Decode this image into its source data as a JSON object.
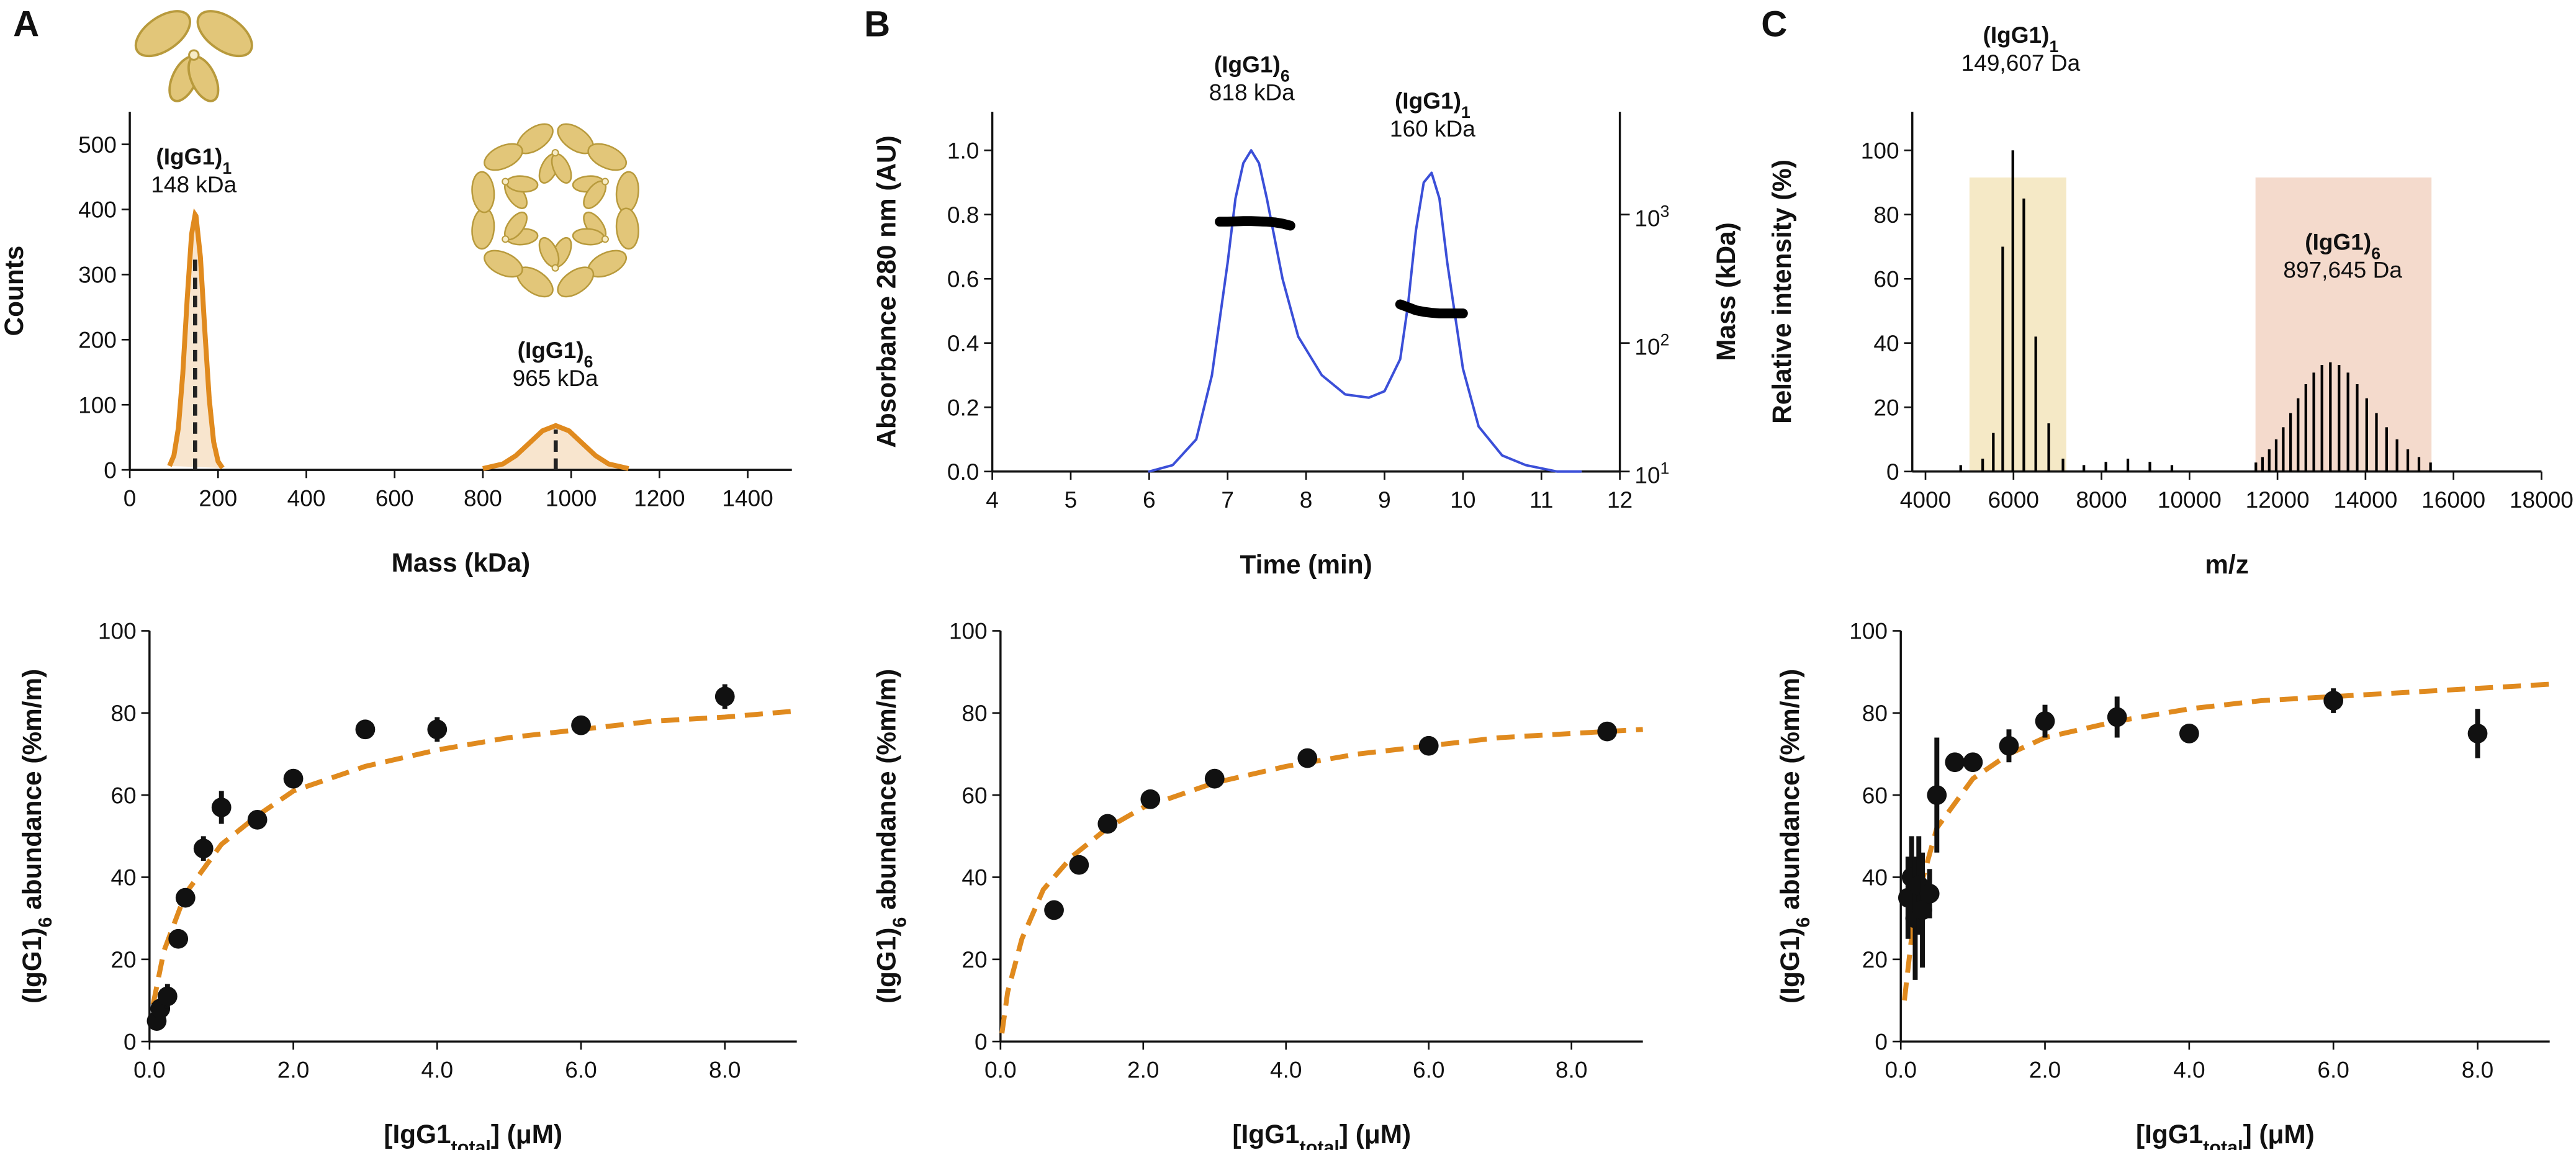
{
  "chart_data": [
    {
      "type": "distribution",
      "panel": "A",
      "xlabel": "Mass (kDa)",
      "ylabel": "Counts",
      "xlim": [
        0,
        1500
      ],
      "xticks": [
        0,
        200,
        400,
        600,
        800,
        1000,
        1200,
        1400
      ],
      "ylim": [
        0,
        550
      ],
      "yticks": [
        0,
        100,
        200,
        300,
        400,
        500
      ],
      "series": [
        {
          "color": "#e08a1e",
          "x": [
            90,
            100,
            110,
            120,
            130,
            140,
            148,
            150,
            160,
            170,
            180,
            190,
            200,
            210
          ],
          "values": [
            6,
            22,
            64,
            147,
            262,
            362,
            392,
            390,
            327,
            214,
            109,
            43,
            13,
            3
          ]
        },
        {
          "color": "#e08a1e",
          "x": [
            800,
            845,
            875,
            905,
            935,
            965,
            995,
            1025,
            1055,
            1085,
            1130
          ],
          "values": [
            2,
            9,
            22,
            41,
            60,
            68,
            60,
            41,
            22,
            9,
            2
          ]
        }
      ],
      "peak_markers": [
        {
          "x": 148,
          "y": 330
        },
        {
          "x": 965,
          "y": 62
        }
      ],
      "annotations": [
        {
          "text": "(IgG1)",
          "sub": "1",
          "detail": "148 kDa"
        },
        {
          "text": "(IgG1)",
          "sub": "6",
          "detail": "965 kDa"
        }
      ]
    },
    {
      "type": "line",
      "panel": "B",
      "xlabel": "Time (min)",
      "ylabel": "Absorbance 280 nm (AU)",
      "y2label": "Mass (kDa)",
      "xlim": [
        4,
        12
      ],
      "xticks": [
        4,
        5,
        6,
        7,
        8,
        9,
        10,
        11,
        12
      ],
      "ylim": [
        0,
        1.12
      ],
      "yticks": [
        {
          "value": 0,
          "label": "0.0"
        },
        0.2,
        0.4,
        0.6,
        0.8,
        {
          "value": 1,
          "label": "1.0"
        }
      ],
      "y2lim": [
        10,
        6310
      ],
      "y2log": true,
      "y2ticks": [
        {
          "value": 10,
          "label": "10",
          "sup": "1"
        },
        {
          "value": 100,
          "label": "10",
          "sup": "2"
        },
        {
          "value": 1000,
          "label": "10",
          "sup": "3"
        }
      ],
      "series": [
        {
          "color": "#3b4fd8",
          "x": [
            6.0,
            6.3,
            6.6,
            6.8,
            7.0,
            7.1,
            7.2,
            7.3,
            7.4,
            7.5,
            7.7,
            7.9,
            8.2,
            8.5,
            8.8,
            9.0,
            9.2,
            9.3,
            9.4,
            9.5,
            9.6,
            9.7,
            9.8,
            10.0,
            10.2,
            10.5,
            10.8,
            11.2,
            11.5
          ],
          "values": [
            0,
            0.02,
            0.1,
            0.3,
            0.65,
            0.85,
            0.96,
            1.0,
            0.96,
            0.85,
            0.6,
            0.42,
            0.3,
            0.24,
            0.23,
            0.25,
            0.35,
            0.52,
            0.75,
            0.9,
            0.93,
            0.85,
            0.65,
            0.32,
            0.14,
            0.05,
            0.02,
            0,
            0
          ]
        },
        {
          "color": "#000000",
          "axis": "y2",
          "x": [
            6.9,
            7.0,
            7.1,
            7.2,
            7.3,
            7.4,
            7.5,
            7.6,
            7.7,
            7.8
          ],
          "values": [
            880,
            880,
            885,
            890,
            890,
            885,
            880,
            870,
            850,
            820
          ]
        },
        {
          "color": "#000000",
          "axis": "y2",
          "x": [
            9.2,
            9.3,
            9.4,
            9.5,
            9.6,
            9.7,
            9.8,
            9.9,
            10.0
          ],
          "values": [
            200,
            190,
            180,
            175,
            172,
            170,
            170,
            170,
            170
          ]
        }
      ],
      "annotations": [
        {
          "text": "(IgG1)",
          "sub": "6",
          "detail": "818 kDa"
        },
        {
          "text": "(IgG1)",
          "sub": "1",
          "detail": "160 kDa"
        }
      ]
    },
    {
      "type": "spectrum",
      "panel": "C",
      "xlabel": "m/z",
      "ylabel": "Relative intensity (%)",
      "xlim": [
        3700,
        18000
      ],
      "xticks": [
        4000,
        6000,
        8000,
        10000,
        12000,
        14000,
        16000,
        18000
      ],
      "ylim": [
        0,
        112
      ],
      "yticks": [
        0,
        20,
        40,
        60,
        80,
        100
      ],
      "highlights": [
        {
          "xlim": [
            5000,
            7200
          ],
          "color": "#f1dfae"
        },
        {
          "xlim": [
            11500,
            15500
          ],
          "color": "#f0cbb7"
        }
      ],
      "series": [
        {
          "color": "#000000",
          "x": [
            4800,
            5300,
            5542,
            5755,
            5985,
            6235,
            6506,
            6801,
            7125,
            7600,
            8100,
            8600,
            9100,
            9600,
            11509,
            11659,
            11812,
            11970,
            12131,
            12297,
            12468,
            12644,
            12825,
            13010,
            13202,
            13399,
            13602,
            13811,
            14027,
            14249,
            14479,
            14716,
            14962,
            15215,
            15478
          ],
          "values": [
            2,
            4,
            12,
            70,
            100,
            85,
            42,
            15,
            4,
            2,
            3,
            4,
            3,
            2,
            2.8,
            4.5,
            6.9,
            10,
            13.8,
            18.2,
            22.8,
            27.2,
            30.8,
            33.2,
            34,
            33.2,
            30.8,
            27.2,
            22.8,
            18.2,
            13.8,
            10,
            6.9,
            4.5,
            2.8
          ]
        }
      ],
      "annotations": [
        {
          "text": "(IgG1)",
          "sub": "1",
          "detail": "149,607 Da"
        },
        {
          "text": "(IgG1)",
          "sub": "6",
          "detail": "897,645 Da"
        }
      ]
    },
    {
      "type": "scatter",
      "xlabel": {
        "text": "[IgG1",
        "sub": "total",
        "post": "] (μM)"
      },
      "ylabel": {
        "text": "(IgG1)",
        "sub": "6",
        "post": " abundance (%m/m)"
      },
      "xlim": [
        0,
        9
      ],
      "xticks": [
        {
          "value": 0,
          "label": "0.0"
        },
        {
          "value": 2,
          "label": "2.0"
        },
        {
          "value": 4,
          "label": "4.0"
        },
        {
          "value": 6,
          "label": "6.0"
        },
        {
          "value": 8,
          "label": "8.0"
        }
      ],
      "ylim": [
        0,
        100
      ],
      "yticks": [
        0,
        20,
        40,
        60,
        80,
        100
      ],
      "color": "#111111",
      "x": [
        0.1,
        0.15,
        0.25,
        0.4,
        0.5,
        0.75,
        1.0,
        1.5,
        2.0,
        3.0,
        4.0,
        6.0,
        8.0
      ],
      "values": [
        5,
        8,
        11,
        25,
        35,
        47,
        57,
        54,
        64,
        76,
        76,
        77,
        84
      ],
      "errors": [
        2,
        2,
        3,
        2,
        2,
        3,
        4,
        2,
        2,
        2,
        3,
        2,
        3
      ],
      "fit": {
        "color": "#e08a1e",
        "x": [
          0.05,
          0.2,
          0.5,
          1,
          1.5,
          2,
          3,
          4,
          5,
          6,
          7,
          8,
          9
        ],
        "values": [
          9,
          22,
          36,
          48,
          55,
          61,
          67,
          71,
          74,
          76,
          78,
          79,
          80.5
        ]
      }
    },
    {
      "type": "scatter",
      "xlabel": {
        "text": "[IgG1",
        "sub": "total",
        "post": "] (μM)"
      },
      "ylabel": {
        "text": "(IgG1)",
        "sub": "6",
        "post": " abundance (%m/m)"
      },
      "xlim": [
        0,
        9
      ],
      "xticks": [
        {
          "value": 0,
          "label": "0.0"
        },
        {
          "value": 2,
          "label": "2.0"
        },
        {
          "value": 4,
          "label": "4.0"
        },
        {
          "value": 6,
          "label": "6.0"
        },
        {
          "value": 8,
          "label": "8.0"
        }
      ],
      "ylim": [
        0,
        100
      ],
      "yticks": [
        0,
        20,
        40,
        60,
        80,
        100
      ],
      "color": "#111111",
      "x": [
        0.75,
        1.1,
        1.5,
        2.1,
        3.0,
        4.3,
        6.0,
        8.5
      ],
      "values": [
        32,
        43,
        53,
        59,
        64,
        69,
        72,
        75.5
      ],
      "errors": [
        1,
        1,
        1,
        1,
        1,
        1,
        1,
        1
      ],
      "fit": {
        "color": "#e08a1e",
        "x": [
          0.02,
          0.1,
          0.3,
          0.6,
          1,
          1.5,
          2,
          3,
          4,
          5,
          6,
          7,
          8,
          9
        ],
        "values": [
          2,
          12,
          25,
          37,
          45,
          52,
          57,
          63,
          67,
          70,
          72,
          74,
          75,
          76
        ]
      }
    },
    {
      "type": "scatter",
      "xlabel": {
        "text": "[IgG1",
        "sub": "total",
        "post": "] (μM)"
      },
      "ylabel": {
        "text": "(IgG1)",
        "sub": "6",
        "post": " abundance (%m/m)"
      },
      "xlim": [
        0,
        9
      ],
      "xticks": [
        {
          "value": 0,
          "label": "0.0"
        },
        {
          "value": 2,
          "label": "2.0"
        },
        {
          "value": 4,
          "label": "4.0"
        },
        {
          "value": 6,
          "label": "6.0"
        },
        {
          "value": 8,
          "label": "8.0"
        }
      ],
      "ylim": [
        0,
        100
      ],
      "yticks": [
        0,
        20,
        40,
        60,
        80,
        100
      ],
      "color": "#111111",
      "x": [
        0.1,
        0.15,
        0.2,
        0.25,
        0.3,
        0.4,
        0.5,
        0.75,
        1.0,
        1.5,
        2.0,
        3.0,
        4.0,
        6.0,
        8.0
      ],
      "values": [
        35,
        40,
        30,
        38,
        32,
        36,
        60,
        68,
        68,
        72,
        78,
        79,
        75,
        83,
        75
      ],
      "errors": [
        10,
        10,
        15,
        12,
        14,
        6,
        14,
        2,
        2,
        4,
        4,
        5,
        2,
        3,
        6
      ],
      "fit": {
        "color": "#e08a1e",
        "x": [
          0.05,
          0.2,
          0.5,
          1,
          1.5,
          2,
          3,
          4,
          5,
          6,
          7,
          8,
          9
        ],
        "values": [
          10,
          33,
          52,
          64,
          70,
          74,
          78,
          81,
          83,
          84,
          85,
          86,
          87
        ]
      }
    }
  ]
}
